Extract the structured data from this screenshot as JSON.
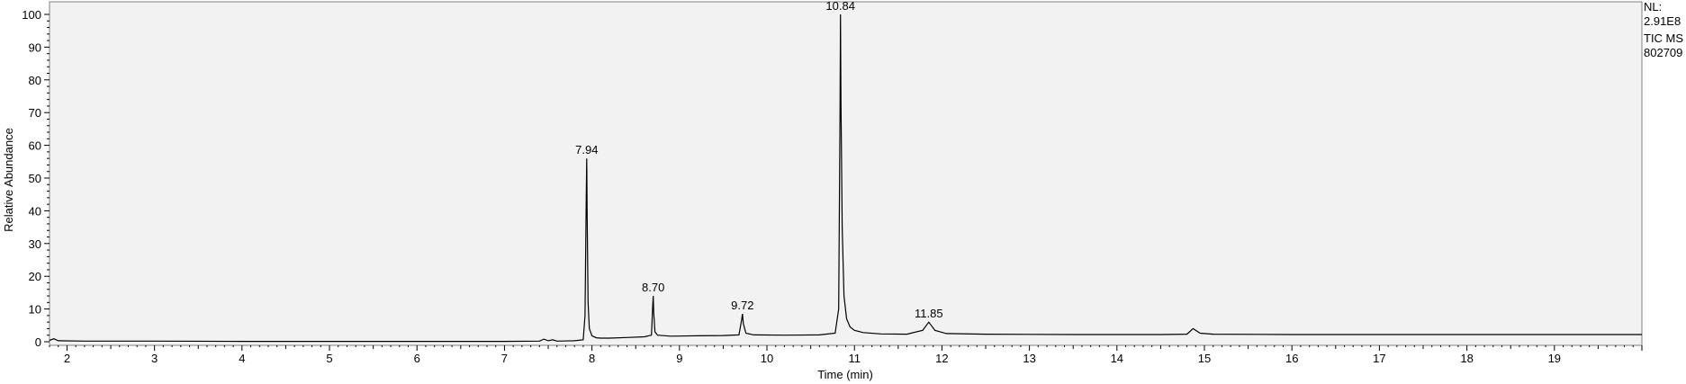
{
  "info": {
    "nl_label": "NL:",
    "nl_value": "2.91E8",
    "scan_filter": "TIC  MS",
    "sample_id": "802709"
  },
  "chart_data": {
    "type": "line",
    "xlabel": "Time (min)",
    "ylabel": "Relative Abundance",
    "xlim": [
      1.8,
      20.0
    ],
    "ylim": [
      0,
      100
    ],
    "x_ticks": [
      2,
      3,
      4,
      5,
      6,
      7,
      8,
      9,
      10,
      11,
      12,
      13,
      14,
      15,
      16,
      17,
      18,
      19
    ],
    "y_ticks": [
      0,
      10,
      20,
      30,
      40,
      50,
      60,
      70,
      80,
      90,
      100
    ],
    "grid": false,
    "series": [
      {
        "x": [
          1.8,
          1.85,
          1.9,
          2.2,
          3.0,
          4.0,
          5.0,
          6.0,
          7.0,
          7.4,
          7.45,
          7.5,
          7.55,
          7.6,
          7.8,
          7.9,
          7.92,
          7.935,
          7.94,
          7.945,
          7.955,
          7.97,
          8.0,
          8.05,
          8.1,
          8.2,
          8.4,
          8.6,
          8.68,
          8.695,
          8.7,
          8.705,
          8.72,
          8.75,
          8.9,
          9.2,
          9.5,
          9.68,
          9.71,
          9.72,
          9.73,
          9.76,
          9.85,
          10.2,
          10.6,
          10.78,
          10.82,
          10.835,
          10.84,
          10.845,
          10.86,
          10.88,
          10.91,
          10.95,
          11.0,
          11.1,
          11.3,
          11.6,
          11.78,
          11.85,
          11.92,
          12.05,
          12.5,
          13.5,
          14.5,
          14.8,
          14.87,
          14.95,
          15.1,
          16.0,
          17.0,
          18.0,
          19.0,
          20.0
        ],
        "y": [
          0.4,
          0.9,
          0.3,
          0.2,
          0.2,
          0.1,
          0.1,
          0.1,
          0.1,
          0.2,
          0.8,
          0.3,
          0.6,
          0.2,
          0.3,
          0.6,
          8.0,
          45.0,
          56.0,
          38.0,
          12.0,
          4.0,
          1.8,
          1.2,
          1.1,
          1.1,
          1.3,
          1.5,
          2.0,
          11.5,
          14.0,
          9.0,
          3.0,
          2.0,
          1.7,
          1.8,
          1.9,
          2.1,
          6.5,
          8.5,
          5.5,
          2.6,
          2.1,
          2.0,
          2.1,
          2.6,
          10.0,
          70.0,
          100.0,
          75.0,
          35.0,
          14.0,
          7.0,
          4.5,
          3.5,
          2.8,
          2.4,
          2.3,
          3.5,
          6.0,
          3.5,
          2.5,
          2.3,
          2.2,
          2.2,
          2.3,
          4.0,
          2.6,
          2.3,
          2.2,
          2.2,
          2.2,
          2.2,
          2.2
        ]
      }
    ],
    "annotations": [
      {
        "x": 7.94,
        "y": 56.0,
        "text": "7.94"
      },
      {
        "x": 8.7,
        "y": 14.0,
        "text": "8.70"
      },
      {
        "x": 9.72,
        "y": 8.5,
        "text": "9.72"
      },
      {
        "x": 10.84,
        "y": 100.0,
        "text": "10.84"
      },
      {
        "x": 11.85,
        "y": 6.0,
        "text": "11.85"
      }
    ]
  }
}
